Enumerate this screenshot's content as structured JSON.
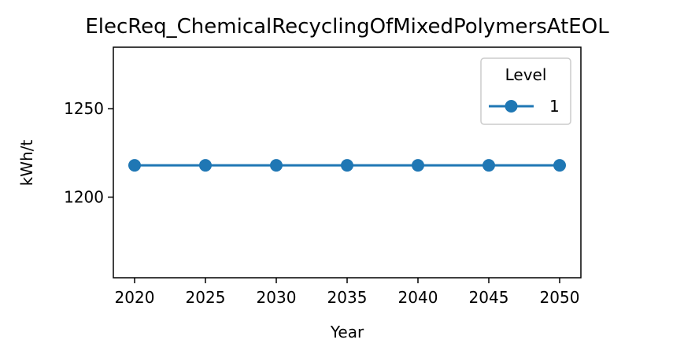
{
  "chart_data": {
    "type": "line",
    "title": "ElecReq_ChemicalRecyclingOfMixedPolymersAtEOL",
    "xlabel": "Year",
    "ylabel": "kWh/t",
    "x": [
      2020,
      2025,
      2030,
      2035,
      2040,
      2045,
      2050
    ],
    "xlim": [
      2018.5,
      2051.5
    ],
    "ylim": [
      1154.4,
      1284.8
    ],
    "yticks": [
      1200,
      1250
    ],
    "grid": false,
    "legend": {
      "title": "Level",
      "placement": "top-right"
    },
    "series": [
      {
        "name": "1",
        "color": "#1f77b4",
        "marker": "circle",
        "values": [
          1218,
          1218,
          1218,
          1218,
          1218,
          1218,
          1218
        ]
      }
    ]
  }
}
